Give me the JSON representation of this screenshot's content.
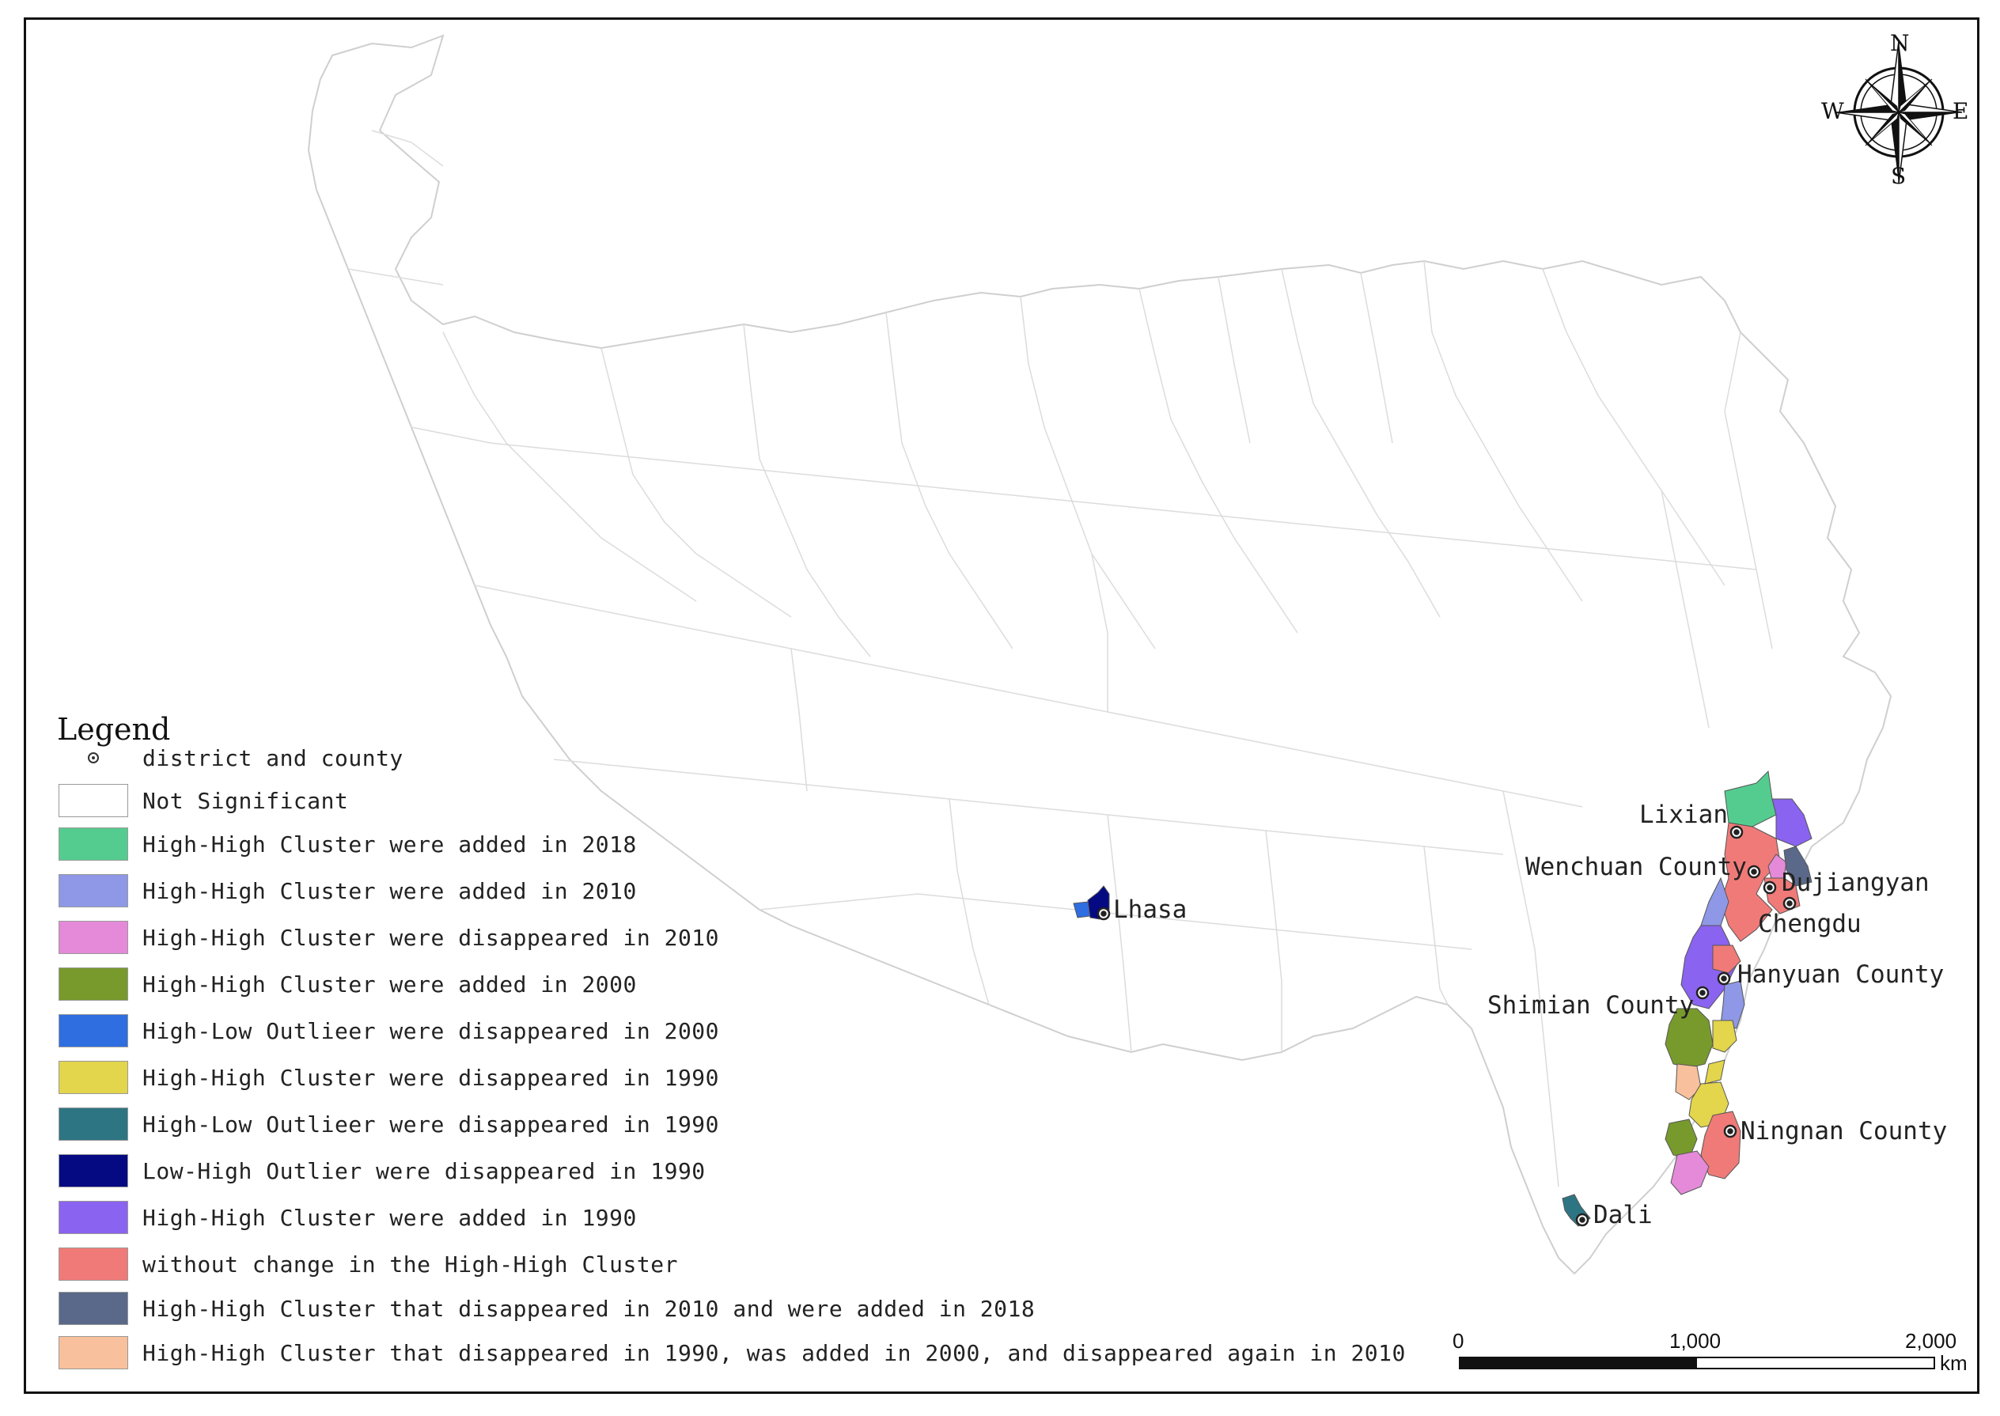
{
  "legend": {
    "title": "Legend",
    "items": [
      {
        "type": "point",
        "label": "district and county",
        "color": "#333333"
      },
      {
        "type": "swatch",
        "label": "Not Significant",
        "color": "#ffffff"
      },
      {
        "type": "swatch",
        "label": "High-High Cluster were added in 2018",
        "color": "#55cc8f"
      },
      {
        "type": "swatch",
        "label": "High-High Cluster were added in 2010",
        "color": "#8e98e6"
      },
      {
        "type": "swatch",
        "label": "High-High Cluster were disappeared in 2010",
        "color": "#e48ad8"
      },
      {
        "type": "swatch",
        "label": "High-High Cluster were added in 2000",
        "color": "#789a2c"
      },
      {
        "type": "swatch",
        "label": "High-Low Outlieer were disappeared in 2000",
        "color": "#2e6ee0"
      },
      {
        "type": "swatch",
        "label": "High-High Cluster were disappeared in 1990",
        "color": "#e3d54c"
      },
      {
        "type": "swatch",
        "label": "High-Low Outlieer were disappeared in 1990",
        "color": "#2e7583"
      },
      {
        "type": "swatch",
        "label": "Low-High Outlier were disappeared in 1990",
        "color": "#050a82"
      },
      {
        "type": "swatch",
        "label": "High-High Cluster were added in 1990",
        "color": "#8a63f0"
      },
      {
        "type": "swatch",
        "label": "without change in the High-High Cluster",
        "color": "#f07a78"
      },
      {
        "type": "swatch",
        "label": "High-High Cluster that disappeared in 2010 and were added in 2018",
        "color": "#5a6989"
      },
      {
        "type": "swatch",
        "label": "High-High Cluster that disappeared in 1990, was added in 2000, and disappeared again in 2010",
        "color": "#f8c09c"
      }
    ]
  },
  "places": [
    {
      "name": "Lhasa"
    },
    {
      "name": "Lixian"
    },
    {
      "name": "Wenchuan County"
    },
    {
      "name": "Dujiangyan"
    },
    {
      "name": "Chengdu"
    },
    {
      "name": "Hanyuan County"
    },
    {
      "name": "Shimian County"
    },
    {
      "name": "Ningnan County"
    },
    {
      "name": "Dali"
    }
  ],
  "scale_bar": {
    "ticks": [
      "0",
      "1,000",
      "2,000"
    ],
    "unit": "km"
  },
  "compass": {
    "n": "N",
    "s": "S",
    "e": "E",
    "w": "W"
  },
  "colors": {
    "boundary": "#d2d2d2",
    "frame": "#111111"
  }
}
